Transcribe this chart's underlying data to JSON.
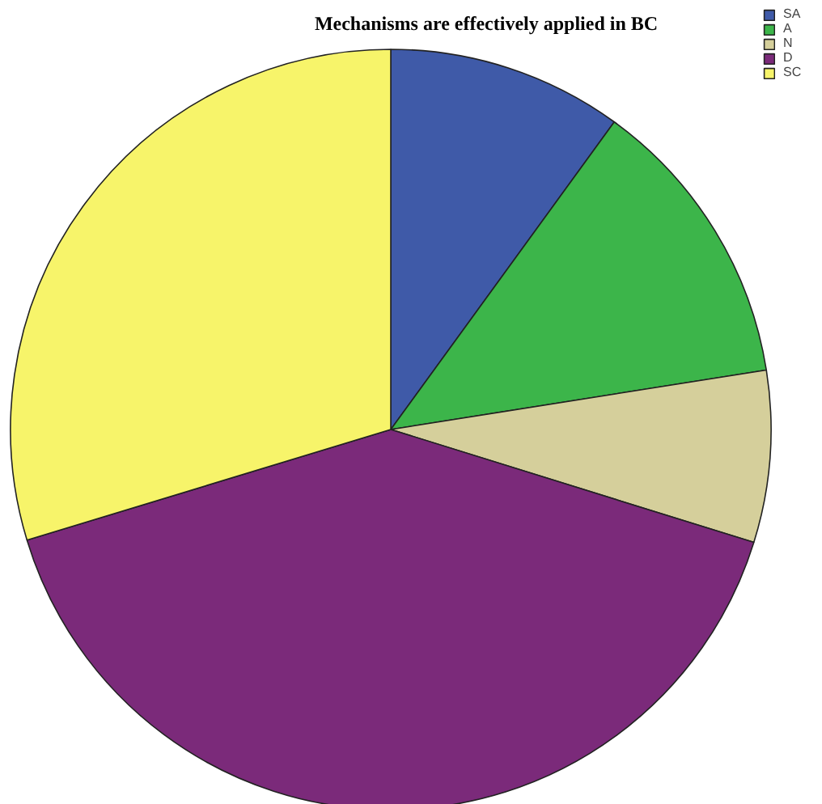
{
  "chart_data": {
    "type": "pie",
    "title": "Mechanisms are effectively applied in BC",
    "categories": [
      "SA",
      "A",
      "N",
      "D",
      "SC"
    ],
    "values": [
      10,
      12.5,
      7.3,
      40.5,
      29.7
    ],
    "colors": [
      "#3f5aa8",
      "#3cb54a",
      "#d5cf9b",
      "#7b2a7a",
      "#f7f46a"
    ],
    "legend": "top right"
  }
}
